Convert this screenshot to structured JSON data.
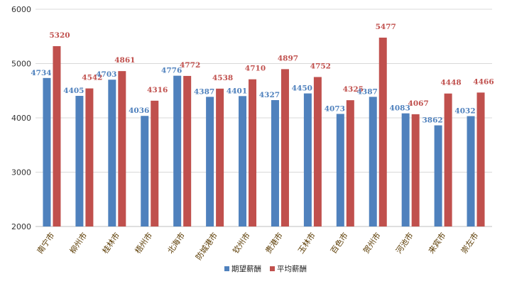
{
  "chart_data": {
    "type": "bar",
    "title": "",
    "xlabel": "",
    "ylabel": "",
    "ylim": [
      2000,
      6000
    ],
    "yticks": [
      2000,
      3000,
      4000,
      5000,
      6000
    ],
    "grid": true,
    "legend_position": "bottom",
    "categories": [
      "南宁市",
      "柳州市",
      "桂林市",
      "梧州市",
      "北海市",
      "防城港市",
      "钦州市",
      "贵港市",
      "玉林市",
      "百色市",
      "贺州市",
      "河池市",
      "来宾市",
      "崇左市"
    ],
    "series": [
      {
        "name": "期望薪酬",
        "color": "#4f81bd",
        "values": [
          4734,
          4405,
          4703,
          4036,
          4776,
          4387,
          4401,
          4327,
          4450,
          4073,
          4387,
          4083,
          3862,
          4032
        ]
      },
      {
        "name": "平均薪酬",
        "color": "#c0504d",
        "values": [
          5320,
          4542,
          4861,
          4316,
          4772,
          4538,
          4710,
          4897,
          4752,
          4325,
          5477,
          4067,
          4448,
          4466
        ]
      }
    ]
  }
}
